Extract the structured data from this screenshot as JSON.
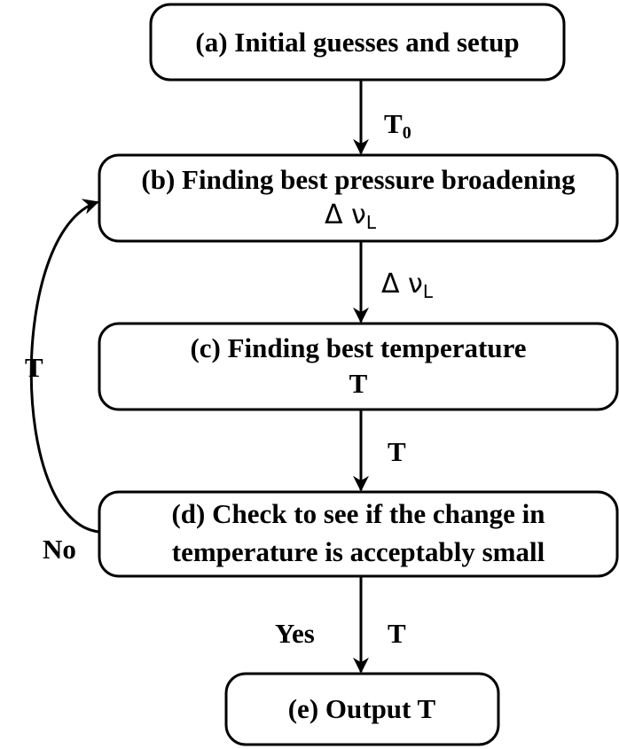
{
  "nodes": [
    {
      "lines": [
        "(a) Initial guesses and setup"
      ]
    },
    {
      "lines": [
        "(b) Finding best pressure broadening"
      ],
      "symbol": {
        "text": "Δ ν",
        "sub": "L"
      }
    },
    {
      "lines": [
        "(c) Finding best temperature",
        "T"
      ]
    },
    {
      "lines": [
        "(d) Check to see if the change in",
        "temperature is acceptably small"
      ]
    },
    {
      "lines": [
        "(e) Output T"
      ]
    }
  ],
  "edges": [
    {
      "label": {
        "text": "T",
        "sub": "0"
      }
    },
    {
      "label": {
        "text": "Δ ν",
        "sub": "L"
      }
    },
    {
      "label": {
        "text": "T"
      }
    },
    {
      "label": {
        "text": "T"
      },
      "condition": "Yes"
    },
    {
      "label": {
        "text": "T"
      },
      "condition": "No"
    }
  ]
}
